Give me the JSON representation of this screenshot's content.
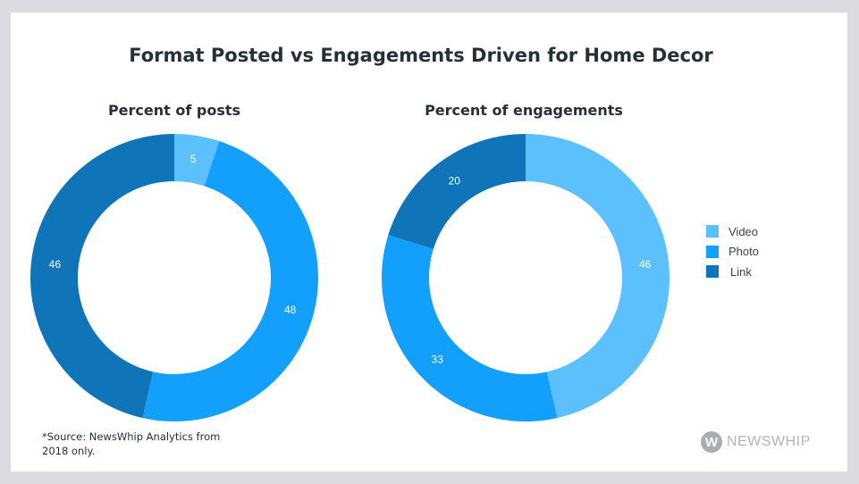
{
  "chart_data": [
    {
      "type": "pie",
      "title": "Percent of posts",
      "categories": [
        "Video",
        "Photo",
        "Link"
      ],
      "values": [
        5,
        48,
        46
      ],
      "donut": true
    },
    {
      "type": "pie",
      "title": "Percent of engagements",
      "categories": [
        "Video",
        "Photo",
        "Link"
      ],
      "values": [
        46,
        33,
        20
      ],
      "donut": true
    }
  ],
  "title": "Format Posted vs Engagements Driven for Home Decor",
  "legend": [
    {
      "label": "Video",
      "color": "#5bc0fc"
    },
    {
      "label": "Photo",
      "color": "#12a0fc"
    },
    {
      "label": "Link",
      "color": "#0f74b8"
    }
  ],
  "source": "*Source: NewsWhip Analytics from 2018 only.",
  "logo": {
    "mark": "W",
    "text": "NEWSWHIP"
  }
}
